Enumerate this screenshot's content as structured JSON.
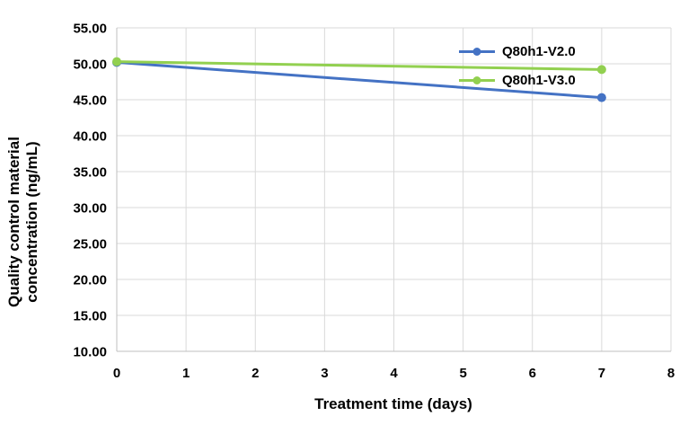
{
  "chart_data": {
    "type": "line",
    "title": "",
    "xlabel": "Treatment time (days)",
    "ylabel": "Quality control material concentration (ng/mL)",
    "ylabel_lines": [
      "Quality control material",
      "concentration (ng/mL)"
    ],
    "x": [
      0,
      7
    ],
    "series": [
      {
        "name": "Q80h1-V2.0",
        "color": "#4472C4",
        "values": [
          50.2,
          45.3
        ]
      },
      {
        "name": "Q80h1-V3.0",
        "color": "#92D050",
        "values": [
          50.3,
          49.2
        ]
      }
    ],
    "xlim": [
      0,
      8
    ],
    "ylim": [
      10,
      55
    ],
    "x_tick_labels": [
      "0",
      "1",
      "2",
      "3",
      "4",
      "5",
      "6",
      "7",
      "8"
    ],
    "y_tick_labels": [
      "10.00",
      "15.00",
      "20.00",
      "25.00",
      "30.00",
      "35.00",
      "40.00",
      "45.00",
      "50.00",
      "55.00"
    ],
    "grid": true,
    "legend_position": "inside-top-right",
    "colors": {
      "grid": "#D9D9D9",
      "axis": "#BFBFBF",
      "text": "#000000",
      "background": "#FFFFFF"
    }
  }
}
